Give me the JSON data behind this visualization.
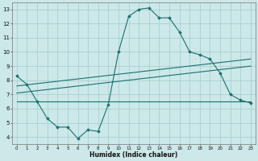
{
  "xlabel": "Humidex (Indice chaleur)",
  "ylabel": "",
  "background_color": "#cce8e8",
  "grid_color": "#aad0d0",
  "line_color": "#1a7070",
  "xlim": [
    -0.5,
    23.5
  ],
  "ylim": [
    3.5,
    13.5
  ],
  "xticks": [
    0,
    1,
    2,
    3,
    4,
    5,
    6,
    7,
    8,
    9,
    10,
    11,
    12,
    13,
    14,
    15,
    16,
    17,
    18,
    19,
    20,
    21,
    22,
    23
  ],
  "yticks": [
    4,
    5,
    6,
    7,
    8,
    9,
    10,
    11,
    12,
    13
  ],
  "line1_x": [
    0,
    1,
    2,
    3,
    4,
    5,
    6,
    7,
    8,
    9,
    10,
    11,
    12,
    13,
    14,
    15,
    16,
    17,
    18,
    19,
    20,
    21,
    22,
    23
  ],
  "line1_y": [
    8.3,
    7.7,
    6.5,
    5.3,
    4.7,
    4.7,
    3.9,
    4.5,
    4.4,
    6.3,
    10.0,
    12.5,
    13.0,
    13.1,
    12.4,
    12.4,
    11.4,
    10.0,
    9.8,
    9.5,
    8.5,
    7.0,
    6.6,
    6.4
  ],
  "line2_x": [
    0,
    23
  ],
  "line2_y": [
    7.6,
    9.5
  ],
  "line3_x": [
    0,
    23
  ],
  "line3_y": [
    7.1,
    9.0
  ],
  "line4_x": [
    0,
    23
  ],
  "line4_y": [
    6.5,
    6.5
  ]
}
